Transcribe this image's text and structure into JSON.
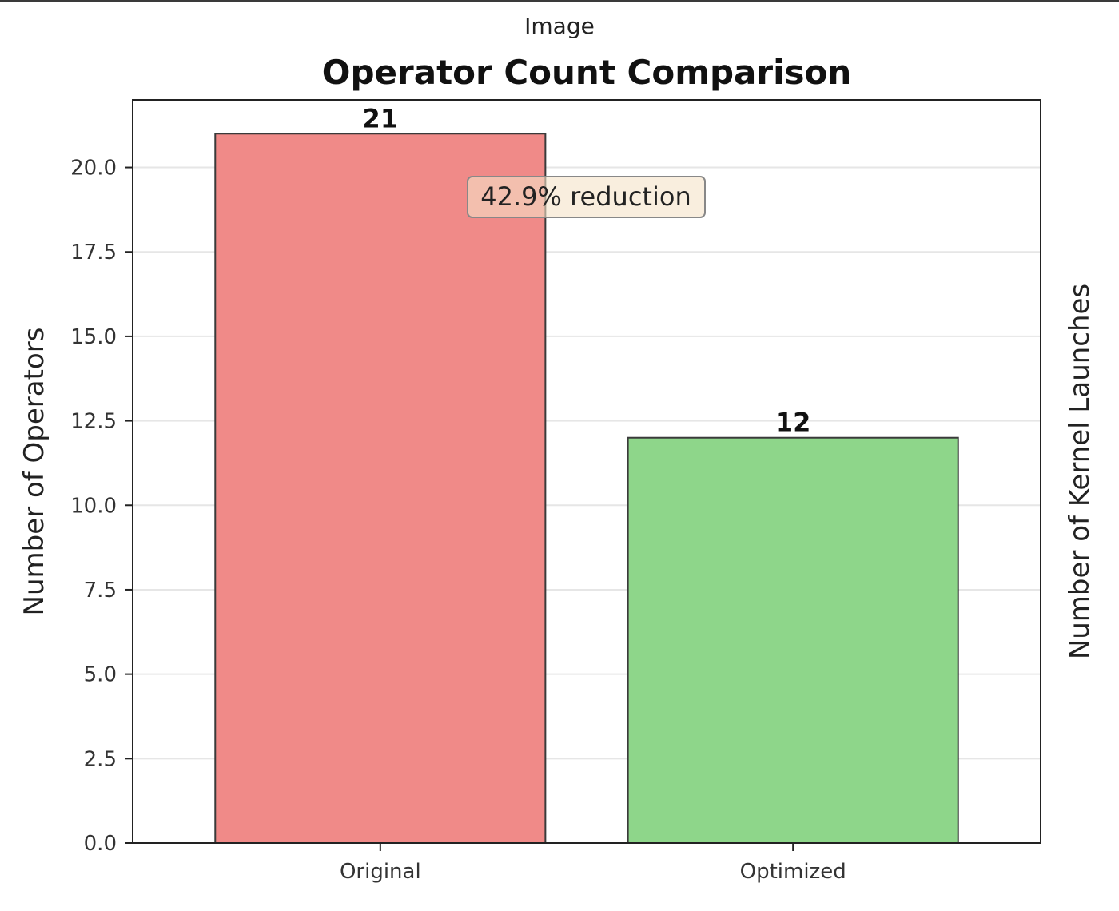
{
  "window": {
    "caption": "Image"
  },
  "chart_data": {
    "type": "bar",
    "title": "Operator Count Comparison",
    "categories": [
      "Original",
      "Optimized"
    ],
    "values": [
      21,
      12
    ],
    "value_labels": [
      "21",
      "12"
    ],
    "bar_colors": [
      "#f08a88",
      "#8ed68a"
    ],
    "edge_color": "#3a3a3a",
    "xlabel": "",
    "ylabel": "Number of Operators",
    "ylabel_right": "Number of Kernel Launches",
    "ylim": [
      0,
      22
    ],
    "yticks": [
      0.0,
      2.5,
      5.0,
      7.5,
      10.0,
      12.5,
      15.0,
      17.5,
      20.0
    ],
    "ytick_labels": [
      "0.0",
      "2.5",
      "5.0",
      "7.5",
      "10.0",
      "12.5",
      "15.0",
      "17.5",
      "20.0"
    ],
    "grid": "horizontal",
    "annotation": {
      "text": "42.9% reduction",
      "bg_color": "#f5e3c8"
    }
  }
}
